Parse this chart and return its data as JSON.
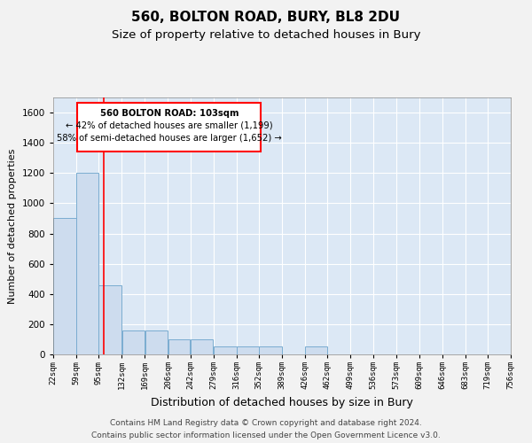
{
  "title": "560, BOLTON ROAD, BURY, BL8 2DU",
  "subtitle": "Size of property relative to detached houses in Bury",
  "xlabel": "Distribution of detached houses by size in Bury",
  "ylabel": "Number of detached properties",
  "footer1": "Contains HM Land Registry data © Crown copyright and database right 2024.",
  "footer2": "Contains public sector information licensed under the Open Government Licence v3.0.",
  "bar_color": "#cddcee",
  "bar_edge_color": "#7aacd0",
  "bg_color": "#dce8f5",
  "annotation_text": "560 BOLTON ROAD: 103sqm\n← 42% of detached houses are smaller (1,199)\n58% of semi-detached houses are larger (1,652) →",
  "red_line_x": 103,
  "ylim": [
    0,
    1700
  ],
  "yticks": [
    0,
    200,
    400,
    600,
    800,
    1000,
    1200,
    1400,
    1600
  ],
  "bin_edges": [
    22,
    59,
    95,
    132,
    169,
    206,
    242,
    279,
    316,
    352,
    389,
    426,
    462,
    499,
    536,
    573,
    609,
    646,
    683,
    719,
    756
  ],
  "bar_heights": [
    900,
    1200,
    460,
    160,
    160,
    100,
    100,
    50,
    50,
    50,
    0,
    50,
    0,
    0,
    0,
    0,
    0,
    0,
    0,
    0
  ],
  "grid_color": "#ffffff",
  "title_fontsize": 11,
  "subtitle_fontsize": 9.5,
  "footer_fontsize": 6.5,
  "ylabel_fontsize": 8,
  "xlabel_fontsize": 9,
  "fig_bg": "#f2f2f2"
}
